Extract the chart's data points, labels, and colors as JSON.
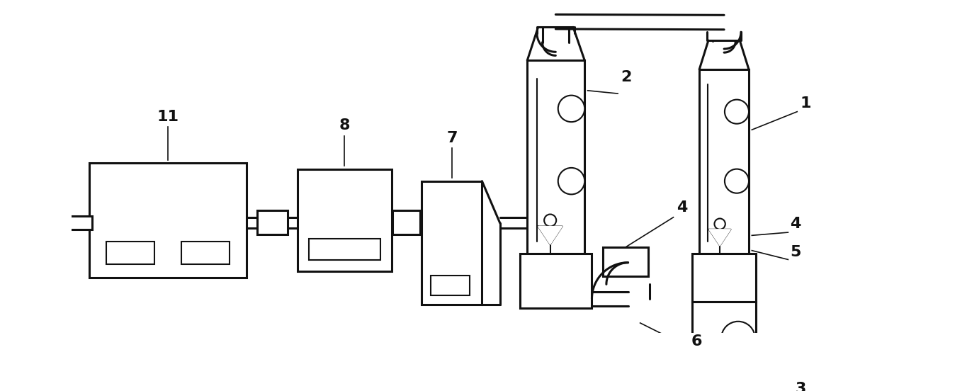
{
  "bg": "#ffffff",
  "lc": "#111111",
  "lw": 2.2,
  "lwt": 1.5,
  "lws": 1.2,
  "figsize": [
    13.65,
    5.52
  ],
  "dpi": 100
}
